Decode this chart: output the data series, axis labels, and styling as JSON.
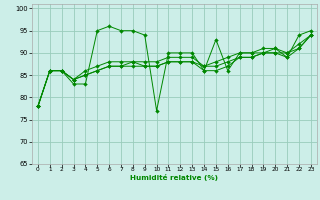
{
  "xlabel": "Humidité relative (%)",
  "xlim": [
    -0.5,
    23.5
  ],
  "ylim": [
    65,
    101
  ],
  "yticks": [
    65,
    70,
    75,
    80,
    85,
    90,
    95,
    100
  ],
  "xticks": [
    0,
    1,
    2,
    3,
    4,
    5,
    6,
    7,
    8,
    9,
    10,
    11,
    12,
    13,
    14,
    15,
    16,
    17,
    18,
    19,
    20,
    21,
    22,
    23
  ],
  "bg_color": "#cceee8",
  "grid_color": "#99ccbb",
  "line_color": "#008800",
  "series": [
    [
      78,
      86,
      86,
      83,
      83,
      95,
      96,
      95,
      95,
      94,
      77,
      90,
      90,
      90,
      86,
      93,
      86,
      90,
      90,
      91,
      91,
      89,
      94,
      95
    ],
    [
      78,
      86,
      86,
      84,
      86,
      87,
      88,
      88,
      88,
      88,
      88,
      89,
      89,
      89,
      87,
      88,
      89,
      90,
      90,
      90,
      91,
      90,
      92,
      94
    ],
    [
      78,
      86,
      86,
      84,
      85,
      86,
      87,
      87,
      88,
      87,
      87,
      88,
      88,
      88,
      87,
      87,
      88,
      89,
      89,
      90,
      90,
      90,
      91,
      94
    ],
    [
      78,
      86,
      86,
      84,
      85,
      86,
      87,
      87,
      87,
      87,
      87,
      88,
      88,
      88,
      86,
      86,
      87,
      89,
      89,
      90,
      90,
      89,
      91,
      94
    ]
  ]
}
